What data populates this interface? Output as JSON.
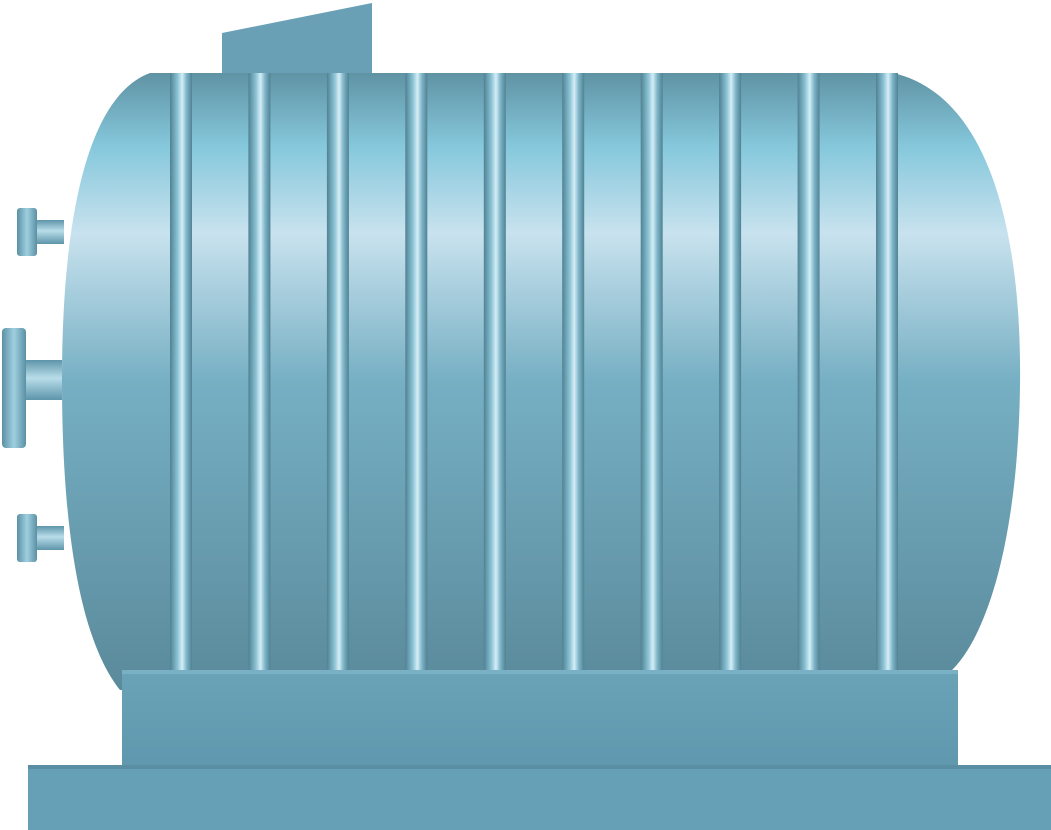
{
  "illustration": {
    "subject": "horizontal-storage-tank",
    "colors": {
      "background": "#ffffff",
      "shell_dark": "#5c8c9c",
      "shell_mid": "#70a8bd",
      "shell_light": "#c8e2ee",
      "shell_highlight": "#86c8dc",
      "rib_dark": "#4f8293",
      "rib_light": "#d6eef6",
      "base_top": "#6aa2b8",
      "base_bottom": "#5f97ad",
      "nozzle": "#6fa6bb"
    },
    "rib_count": 10,
    "nozzle_count": 3
  }
}
